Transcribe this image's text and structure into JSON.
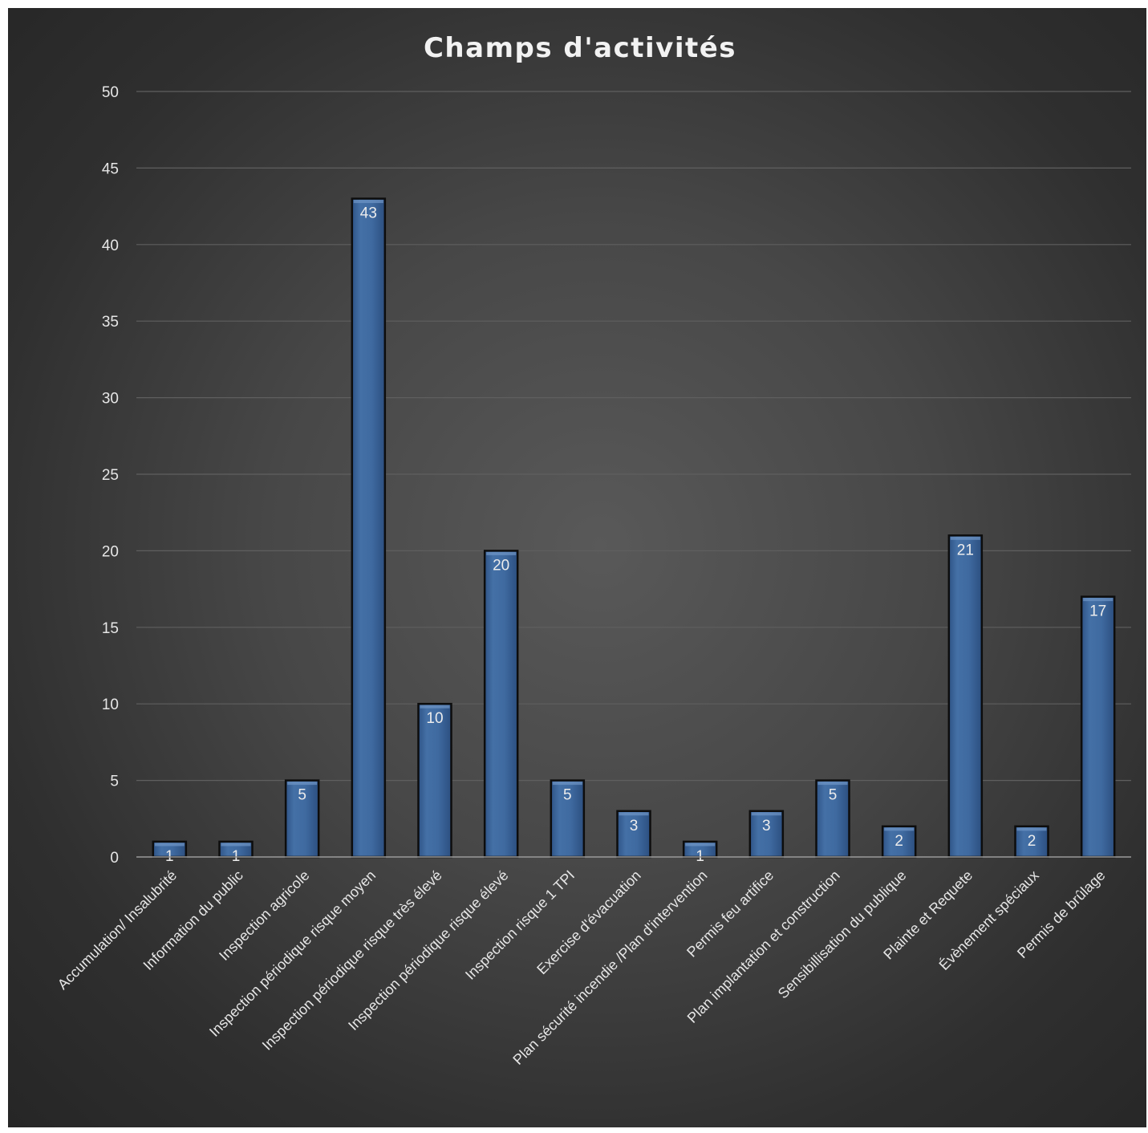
{
  "chart_data": {
    "type": "bar",
    "title": "Champs d'activités",
    "xlabel": "",
    "ylabel": "",
    "ylim": [
      0,
      50
    ],
    "yticks": [
      0,
      5,
      10,
      15,
      20,
      25,
      30,
      35,
      40,
      45,
      50
    ],
    "grid": true,
    "legend": "none",
    "colors": {
      "bar": "#3f6aa0",
      "bar_edge": "#0d0d0d",
      "background": "#3d3d3d",
      "text": "#e6e6e6"
    },
    "categories": [
      "Accumulation/ Insalubrité",
      "Information du public",
      "Inspection agricole",
      "Inspection périodique risque moyen",
      "Inspection périodique risque très élevé",
      "Inspection périodique risque élevé",
      "Inspection risque 1 TPI",
      "Exercise d'évacuation",
      "Plan sécurité incendie /Plan d'intervention",
      "Permis feu artifice",
      "Plan implantation et construction",
      "Sensibillisation du publique",
      "Plainte et Requete",
      "Évènement spéciaux",
      "Permis de brûlage"
    ],
    "values": [
      1,
      1,
      5,
      43,
      10,
      20,
      5,
      3,
      1,
      3,
      5,
      2,
      21,
      2,
      17
    ]
  }
}
